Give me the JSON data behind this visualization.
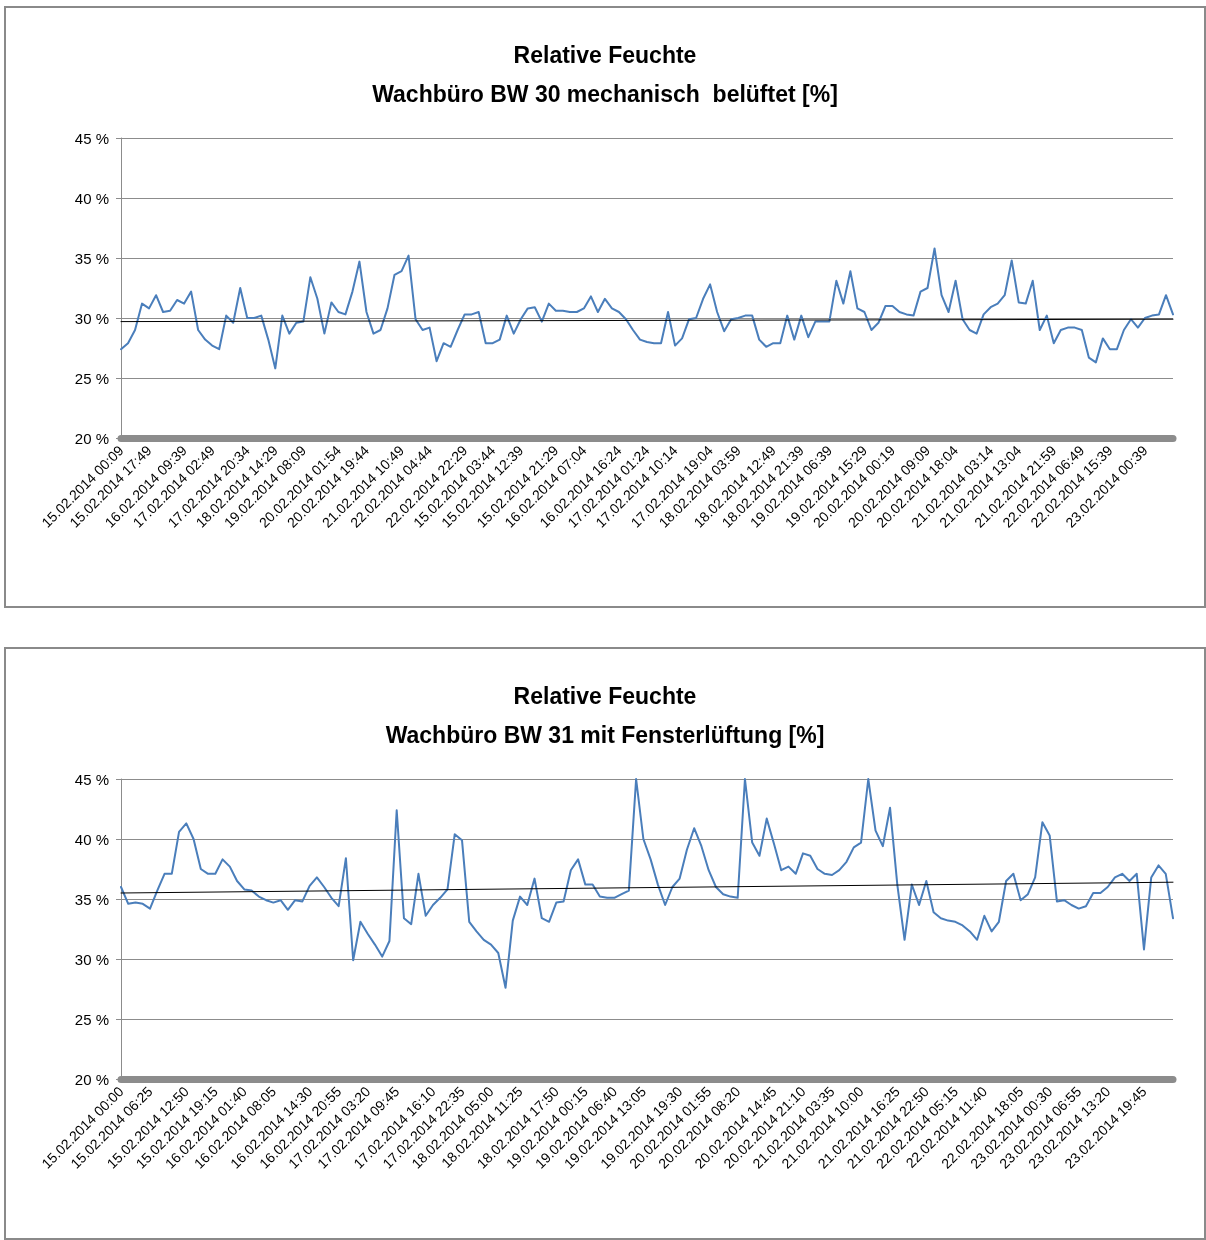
{
  "chart_data": [
    {
      "type": "line",
      "title": "Relative Feuchte\nWachbüro BW 30 mechanisch  belüftet [%]",
      "categories": [
        "15.02.2014 00:09",
        null,
        null,
        null,
        "15.02.2014 17:49",
        null,
        null,
        null,
        null,
        "16.02.2014 09:39",
        null,
        null,
        null,
        "17.02.2014 02:49",
        null,
        null,
        null,
        null,
        "17.02.2014 20:34",
        null,
        null,
        null,
        "18.02.2014 14:29",
        null,
        null,
        null,
        "19.02.2014 08:09",
        null,
        null,
        null,
        null,
        "20.02.2014 01:54",
        null,
        null,
        null,
        "20.02.2014 19:44",
        null,
        null,
        null,
        null,
        "21.02.2014 10:49",
        null,
        null,
        null,
        "22.02.2014 04:44",
        null,
        null,
        null,
        null,
        "22.02.2014 22:29",
        null,
        null,
        null,
        "15.02.2014 03:44",
        null,
        null,
        null,
        "15.02.2014 12:39",
        null,
        null,
        null,
        null,
        "15.02.2014 21:29",
        null,
        null,
        null,
        "16.02.2014 07:04",
        null,
        null,
        null,
        null,
        "16.02.2014 16:24",
        null,
        null,
        null,
        "17.02.2014 01:24",
        null,
        null,
        null,
        "17.02.2014 10:14",
        null,
        null,
        null,
        null,
        "17.02.2014 19:04",
        null,
        null,
        null,
        "18.02.2014 03:59",
        null,
        null,
        null,
        null,
        "18.02.2014 12:49",
        null,
        null,
        null,
        "18.02.2014 21:39",
        null,
        null,
        null,
        "19.02.2014 06:39",
        null,
        null,
        null,
        null,
        "19.02.2014 15:29",
        null,
        null,
        null,
        "20.02.2014 00:19",
        null,
        null,
        null,
        null,
        "20.02.2014 09:09",
        null,
        null,
        null,
        "20.02.2014 18:04",
        null,
        null,
        null,
        null,
        "21.02.2014 03:14",
        null,
        null,
        null,
        "21.02.2014 13:04",
        null,
        null,
        null,
        null,
        "21.02.2014 21:59",
        null,
        null,
        null,
        "22.02.2014 06:49",
        null,
        null,
        null,
        "22.02.2014 15:39",
        null,
        null,
        null,
        null,
        "23.02.2014 00:39",
        null,
        null,
        null,
        null
      ],
      "series": [
        {
          "color": "#4a7ebb",
          "values": [
            27.4,
            27.9,
            29.0,
            31.2,
            30.8,
            31.9,
            30.5,
            30.6,
            31.5,
            31.2,
            32.2,
            29.0,
            28.2,
            27.7,
            27.4,
            30.2,
            29.6,
            32.5,
            30.0,
            30.0,
            30.2,
            28.2,
            25.8,
            30.2,
            28.7,
            29.6,
            29.7,
            33.4,
            31.6,
            28.7,
            31.3,
            30.5,
            30.3,
            32.2,
            34.7,
            30.5,
            28.7,
            29.0,
            30.8,
            33.6,
            33.9,
            35.2,
            29.9,
            29.0,
            29.2,
            26.4,
            27.9,
            27.6,
            29.0,
            30.3,
            30.3,
            30.5,
            27.9,
            27.9,
            28.2,
            30.2,
            28.7,
            29.9,
            30.8,
            30.9,
            29.7,
            31.2,
            30.6,
            30.6,
            30.5,
            30.5,
            30.8,
            31.8,
            30.5,
            31.6,
            30.8,
            30.5,
            29.9,
            29.0,
            28.2,
            28.0,
            27.9,
            27.9,
            30.5,
            27.7,
            28.3,
            29.9,
            30.0,
            31.6,
            32.8,
            30.5,
            28.9,
            29.9,
            30.0,
            30.2,
            30.2,
            28.2,
            27.6,
            27.9,
            27.9,
            30.2,
            28.2,
            30.2,
            28.4,
            29.7,
            29.7,
            29.7,
            33.1,
            31.2,
            33.9,
            30.8,
            30.5,
            29.0,
            29.6,
            31.0,
            31.0,
            30.5,
            30.3,
            30.2,
            32.2,
            32.5,
            35.8,
            31.9,
            30.5,
            33.1,
            29.9,
            29.0,
            28.7,
            30.3,
            30.9,
            31.2,
            31.9,
            34.8,
            31.3,
            31.2,
            33.1,
            29.0,
            30.2,
            27.9,
            29.0,
            29.2,
            29.2,
            29.0,
            26.7,
            26.3,
            28.3,
            27.4,
            27.4,
            29.0,
            29.9,
            29.2,
            30.0,
            30.2,
            30.3,
            31.9,
            30.3
          ]
        },
        {
          "color": "#000000",
          "values": [
            29.7,
            null,
            null,
            null,
            null,
            null,
            null,
            null,
            null,
            null,
            null,
            null,
            null,
            null,
            null,
            null,
            null,
            null,
            null,
            null,
            null,
            null,
            null,
            null,
            null,
            null,
            null,
            null,
            null,
            null,
            null,
            null,
            null,
            null,
            null,
            null,
            null,
            null,
            null,
            null,
            null,
            null,
            null,
            null,
            null,
            null,
            null,
            null,
            null,
            null,
            null,
            null,
            null,
            null,
            null,
            null,
            null,
            null,
            null,
            null,
            null,
            null,
            null,
            null,
            null,
            null,
            null,
            null,
            null,
            null,
            null,
            null,
            null,
            null,
            null,
            null,
            null,
            null,
            null,
            null,
            null,
            null,
            null,
            null,
            null,
            null,
            null,
            null,
            null,
            null,
            null,
            null,
            null,
            null,
            null,
            null,
            null,
            null,
            null,
            null,
            null,
            null,
            null,
            null,
            null,
            null,
            null,
            null,
            null,
            null,
            null,
            null,
            null,
            null,
            null,
            null,
            null,
            null,
            null,
            null,
            null,
            null,
            null,
            null,
            null,
            null,
            null,
            null,
            null,
            null,
            null,
            null,
            null,
            null,
            null,
            null,
            null,
            null,
            null,
            null,
            null,
            null,
            null,
            null,
            null,
            null,
            null,
            null,
            null,
            null,
            29.9
          ]
        }
      ],
      "ylim": [
        20,
        45
      ],
      "yticks": [
        {
          "value": 20,
          "label": "20 %"
        },
        {
          "value": 25,
          "label": "25 %"
        },
        {
          "value": 30,
          "label": "30 %"
        },
        {
          "value": 35,
          "label": "35 %"
        },
        {
          "value": 40,
          "label": "40 %"
        },
        {
          "value": 45,
          "label": "45 %"
        }
      ],
      "grid": "y",
      "marker": "none",
      "line_style": "solid"
    },
    {
      "type": "line",
      "title": "Relative Feuchte\nWachbüro BW 31 mit Fensterlüftung [%]",
      "categories": [
        "15.02.2014 00:00",
        null,
        null,
        null,
        "15.02.2014 06:25",
        null,
        null,
        null,
        null,
        "15.02.2014 12:50",
        null,
        null,
        null,
        "15.02.2014 19:15",
        null,
        null,
        null,
        "16.02.2014 01:40",
        null,
        null,
        null,
        "16.02.2014 08:05",
        null,
        null,
        null,
        null,
        "16.02.2014 14:30",
        null,
        null,
        null,
        "16.02.2014 20:55",
        null,
        null,
        null,
        "17.02.2014 03:20",
        null,
        null,
        null,
        "17.02.2014 09:45",
        null,
        null,
        null,
        null,
        "17.02.2014 16:10",
        null,
        null,
        null,
        "17.02.2014 22:35",
        null,
        null,
        null,
        "18.02.2014 05:00",
        null,
        null,
        null,
        "18.02.2014 11:25",
        null,
        null,
        null,
        null,
        "18.02.2014 17:50",
        null,
        null,
        null,
        "19.02.2014 00:15",
        null,
        null,
        null,
        "19.02.2014 06:40",
        null,
        null,
        null,
        "19.02.2014 13:05",
        null,
        null,
        null,
        null,
        "19.02.2014 19:30",
        null,
        null,
        null,
        "20.02.2014 01:55",
        null,
        null,
        null,
        "20.02.2014 08:20",
        null,
        null,
        null,
        null,
        "20.02.2014 14:45",
        null,
        null,
        null,
        "20.02.2014 21:10",
        null,
        null,
        null,
        "21.02.2014 03:35",
        null,
        null,
        null,
        "21.02.2014 10:00",
        null,
        null,
        null,
        null,
        "21.02.2014 16:25",
        null,
        null,
        null,
        "21.02.2014 22:50",
        null,
        null,
        null,
        "22.02.2014 05:15",
        null,
        null,
        null,
        "22.02.2014 11:40",
        null,
        null,
        null,
        null,
        "22.02.2014 18:05",
        null,
        null,
        null,
        "23.02.2014 00:30",
        null,
        null,
        null,
        "23.02.2014 06:55",
        null,
        null,
        null,
        "23.02.2014 13:20",
        null,
        null,
        null,
        null,
        "23.02.2014 19:45",
        null,
        null,
        null,
        null
      ],
      "series": [
        {
          "color": "#4a7ebb",
          "values": [
            36.0,
            34.6,
            34.7,
            34.6,
            34.2,
            35.7,
            37.1,
            37.1,
            40.6,
            41.3,
            40.0,
            37.5,
            37.1,
            37.1,
            38.3,
            37.7,
            36.5,
            35.8,
            35.7,
            35.2,
            34.9,
            34.7,
            34.9,
            34.1,
            34.9,
            34.8,
            36.1,
            36.8,
            36.0,
            35.1,
            34.4,
            38.4,
            29.9,
            33.1,
            32.1,
            31.2,
            30.2,
            31.5,
            42.4,
            33.4,
            32.9,
            37.1,
            33.6,
            34.5,
            35.1,
            35.8,
            40.4,
            39.9,
            33.1,
            32.3,
            31.6,
            31.2,
            30.5,
            27.6,
            33.2,
            35.2,
            34.5,
            36.7,
            33.4,
            33.1,
            34.7,
            34.8,
            37.4,
            38.3,
            36.2,
            36.2,
            35.2,
            35.1,
            35.1,
            35.4,
            35.7,
            45.0,
            40.0,
            38.3,
            36.2,
            34.5,
            36.0,
            36.7,
            39.1,
            40.9,
            39.4,
            37.4,
            36.0,
            35.4,
            35.2,
            35.1,
            45.0,
            39.7,
            38.6,
            41.7,
            39.6,
            37.4,
            37.7,
            37.1,
            38.8,
            38.6,
            37.5,
            37.1,
            37.0,
            37.4,
            38.1,
            39.3,
            39.7,
            45.0,
            40.7,
            39.4,
            42.6,
            36.2,
            31.6,
            36.2,
            34.5,
            36.5,
            33.9,
            33.4,
            33.2,
            33.1,
            32.8,
            32.3,
            31.6,
            33.6,
            32.3,
            33.1,
            36.5,
            37.1,
            34.9,
            35.4,
            36.8,
            41.4,
            40.3,
            34.8,
            34.9,
            34.5,
            34.2,
            34.4,
            35.5,
            35.5,
            36.0,
            36.8,
            37.1,
            36.5,
            37.1,
            30.8,
            36.8,
            37.8,
            37.1,
            33.4
          ]
        },
        {
          "color": "#000000",
          "values": [
            35.5,
            null,
            null,
            null,
            null,
            null,
            null,
            null,
            null,
            null,
            null,
            null,
            null,
            null,
            null,
            null,
            null,
            null,
            null,
            null,
            null,
            null,
            null,
            null,
            null,
            null,
            null,
            null,
            null,
            null,
            null,
            null,
            null,
            null,
            null,
            null,
            null,
            null,
            null,
            null,
            null,
            null,
            null,
            null,
            null,
            null,
            null,
            null,
            null,
            null,
            null,
            null,
            null,
            null,
            null,
            null,
            null,
            null,
            null,
            null,
            null,
            null,
            null,
            null,
            null,
            null,
            null,
            null,
            null,
            null,
            null,
            null,
            null,
            null,
            null,
            null,
            null,
            null,
            null,
            null,
            null,
            null,
            null,
            null,
            null,
            null,
            null,
            null,
            null,
            null,
            null,
            null,
            null,
            null,
            null,
            null,
            null,
            null,
            null,
            null,
            null,
            null,
            null,
            null,
            null,
            null,
            null,
            null,
            null,
            null,
            null,
            null,
            null,
            null,
            null,
            null,
            null,
            null,
            null,
            null,
            null,
            null,
            null,
            null,
            null,
            null,
            null,
            null,
            null,
            null,
            null,
            null,
            null,
            null,
            null,
            null,
            null,
            null,
            null,
            null,
            null,
            null,
            null,
            null,
            null,
            36.4
          ]
        }
      ],
      "ylim": [
        20,
        45
      ],
      "yticks": [
        {
          "value": 20,
          "label": "20 %"
        },
        {
          "value": 25,
          "label": "25 %"
        },
        {
          "value": 30,
          "label": "30 %"
        },
        {
          "value": 35,
          "label": "35 %"
        },
        {
          "value": 40,
          "label": "40 %"
        },
        {
          "value": 45,
          "label": "45 %"
        }
      ],
      "grid": "y",
      "marker": "none",
      "line_style": "solid"
    }
  ]
}
